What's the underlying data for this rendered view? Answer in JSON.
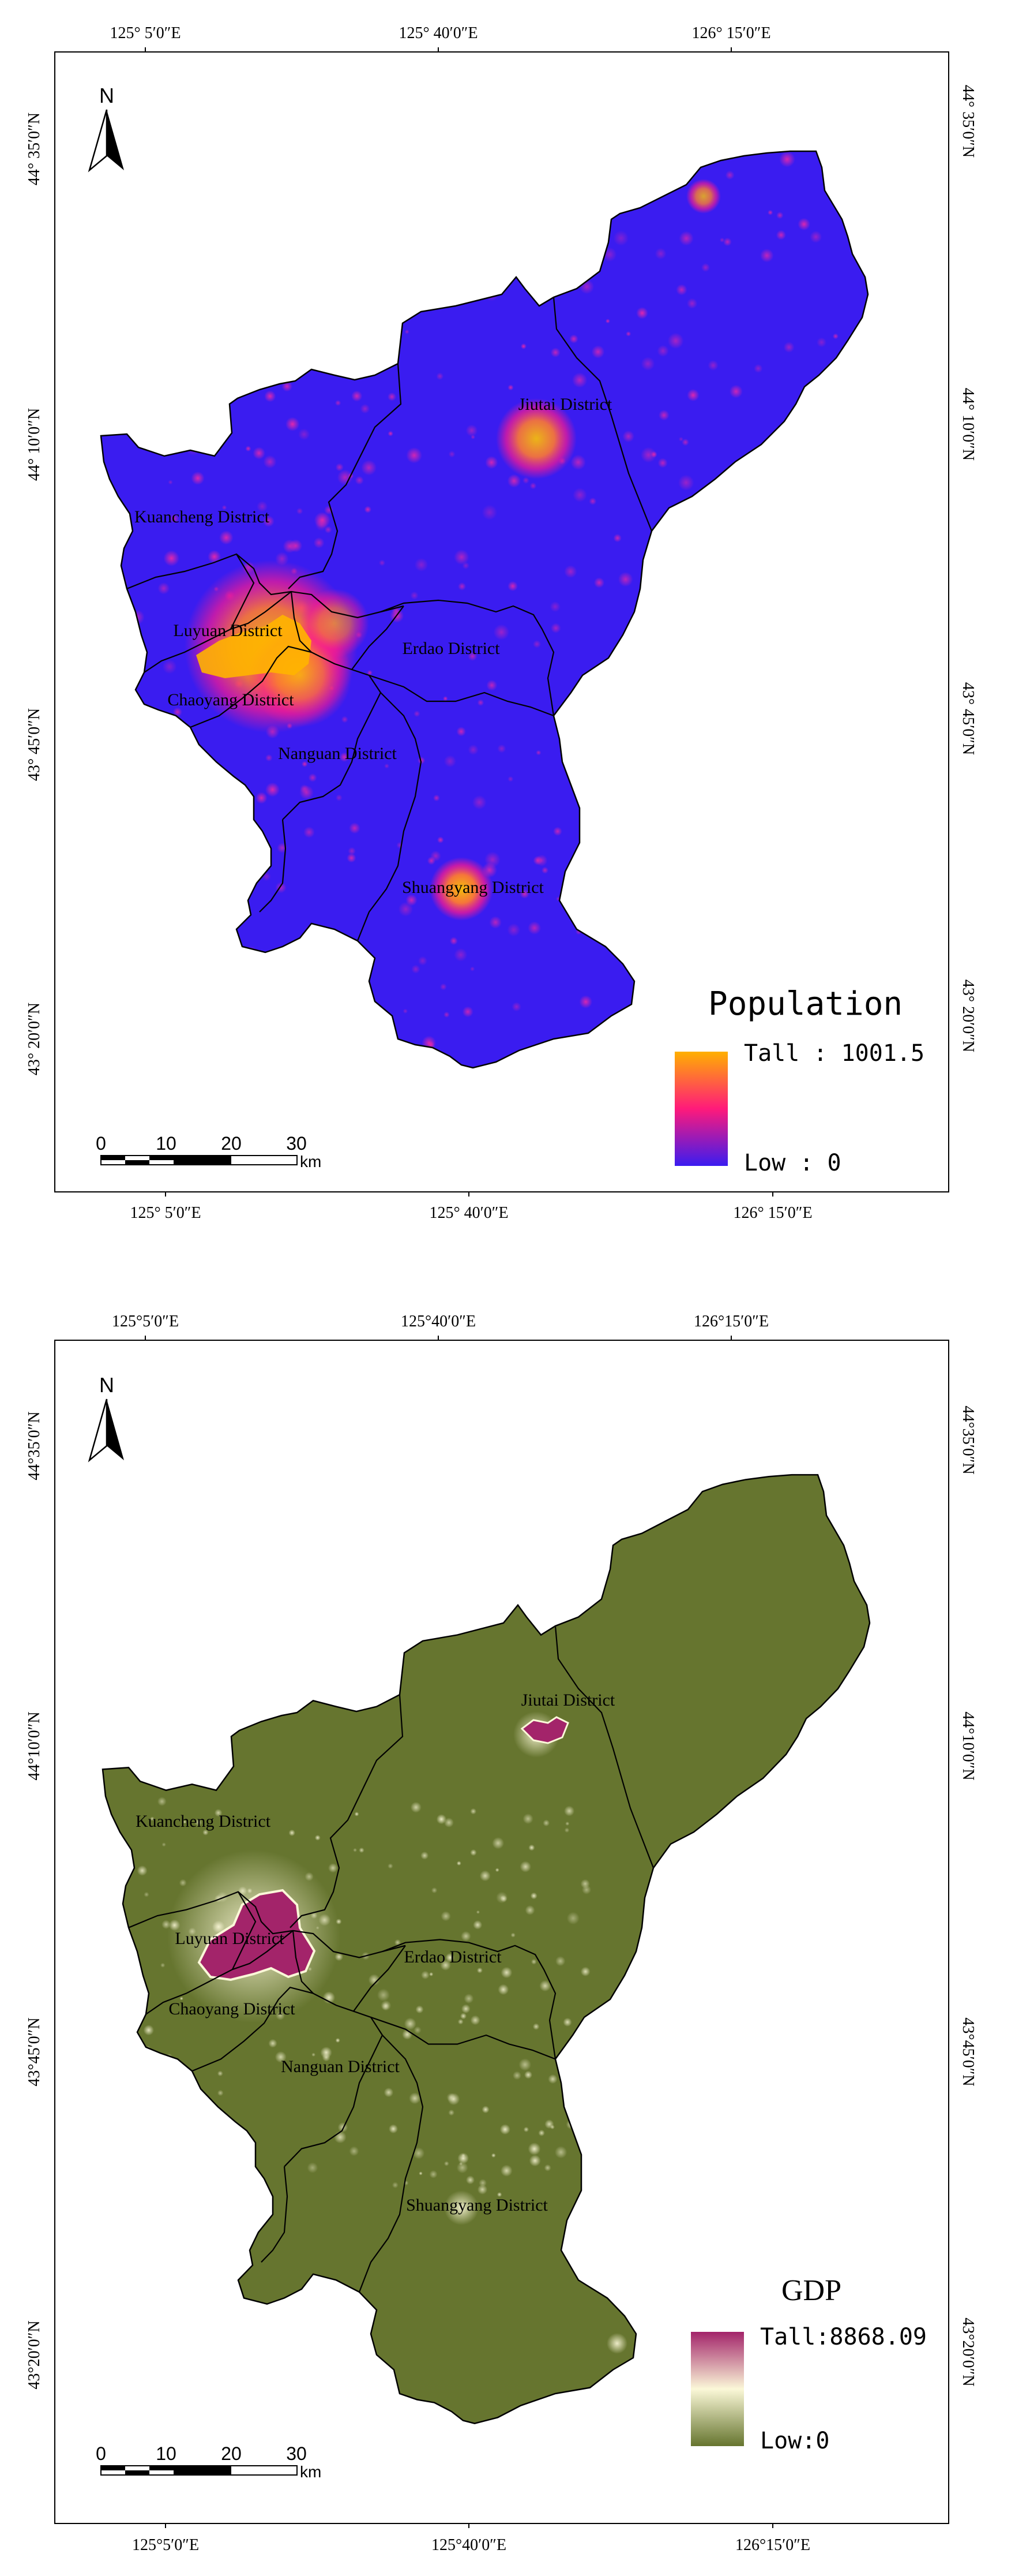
{
  "maps": [
    {
      "legend": {
        "title": "Population",
        "high": "Tall : 1001.5",
        "low": "Low : 0"
      },
      "ticks": {
        "top": [
          "125° 5′0″E",
          "125° 40′0″E",
          "126° 15′0″E"
        ],
        "bottom": [
          "125° 5′0″E",
          "125° 40′0″E",
          "126° 15′0″E"
        ],
        "left": [
          "44° 35′0″N",
          "44° 10′0″N",
          "43° 45′0″N",
          "43° 20′0″N"
        ],
        "right": [
          "44° 35′0″N",
          "44° 10′0″N",
          "43° 45′0″N",
          "43° 20′0″N"
        ]
      },
      "districts": [
        "Jiutai District",
        "Kuancheng District",
        "Luyuan District",
        "Erdao District",
        "Chaoyang District",
        "Nanguan District",
        "Shuangyang District"
      ],
      "north": "N",
      "scale": {
        "labels": [
          "0",
          "10",
          "20",
          "30"
        ],
        "unit": "km"
      },
      "colors": {
        "low": "#3a1cf0",
        "mid": "#ff1a7a",
        "high": "#ffb000"
      }
    },
    {
      "legend": {
        "title": "GDP",
        "high": "Tall:8868.09",
        "low": "Low:0"
      },
      "ticks": {
        "top": [
          "125°5′0″E",
          "125°40′0″E",
          "126°15′0″E"
        ],
        "bottom": [
          "125°5′0″E",
          "125°40′0″E",
          "126°15′0″E"
        ],
        "left": [
          "44°35′0″N",
          "44°10′0″N",
          "43°45′0″N",
          "43°20′0″N"
        ],
        "right": [
          "44°35′0″N",
          "44°10′0″N",
          "43°45′0″N",
          "43°20′0″N"
        ]
      },
      "districts": [
        "Jiutai District",
        "Kuancheng District",
        "Luyuan District",
        "Erdao District",
        "Chaoyang District",
        "Nanguan District",
        "Shuangyang District"
      ],
      "north": "N",
      "scale": {
        "labels": [
          "0",
          "10",
          "20",
          "30"
        ],
        "unit": "km"
      },
      "colors": {
        "low": "#66752f",
        "mid": "#fbf8d8",
        "high": "#a3246a"
      }
    }
  ]
}
